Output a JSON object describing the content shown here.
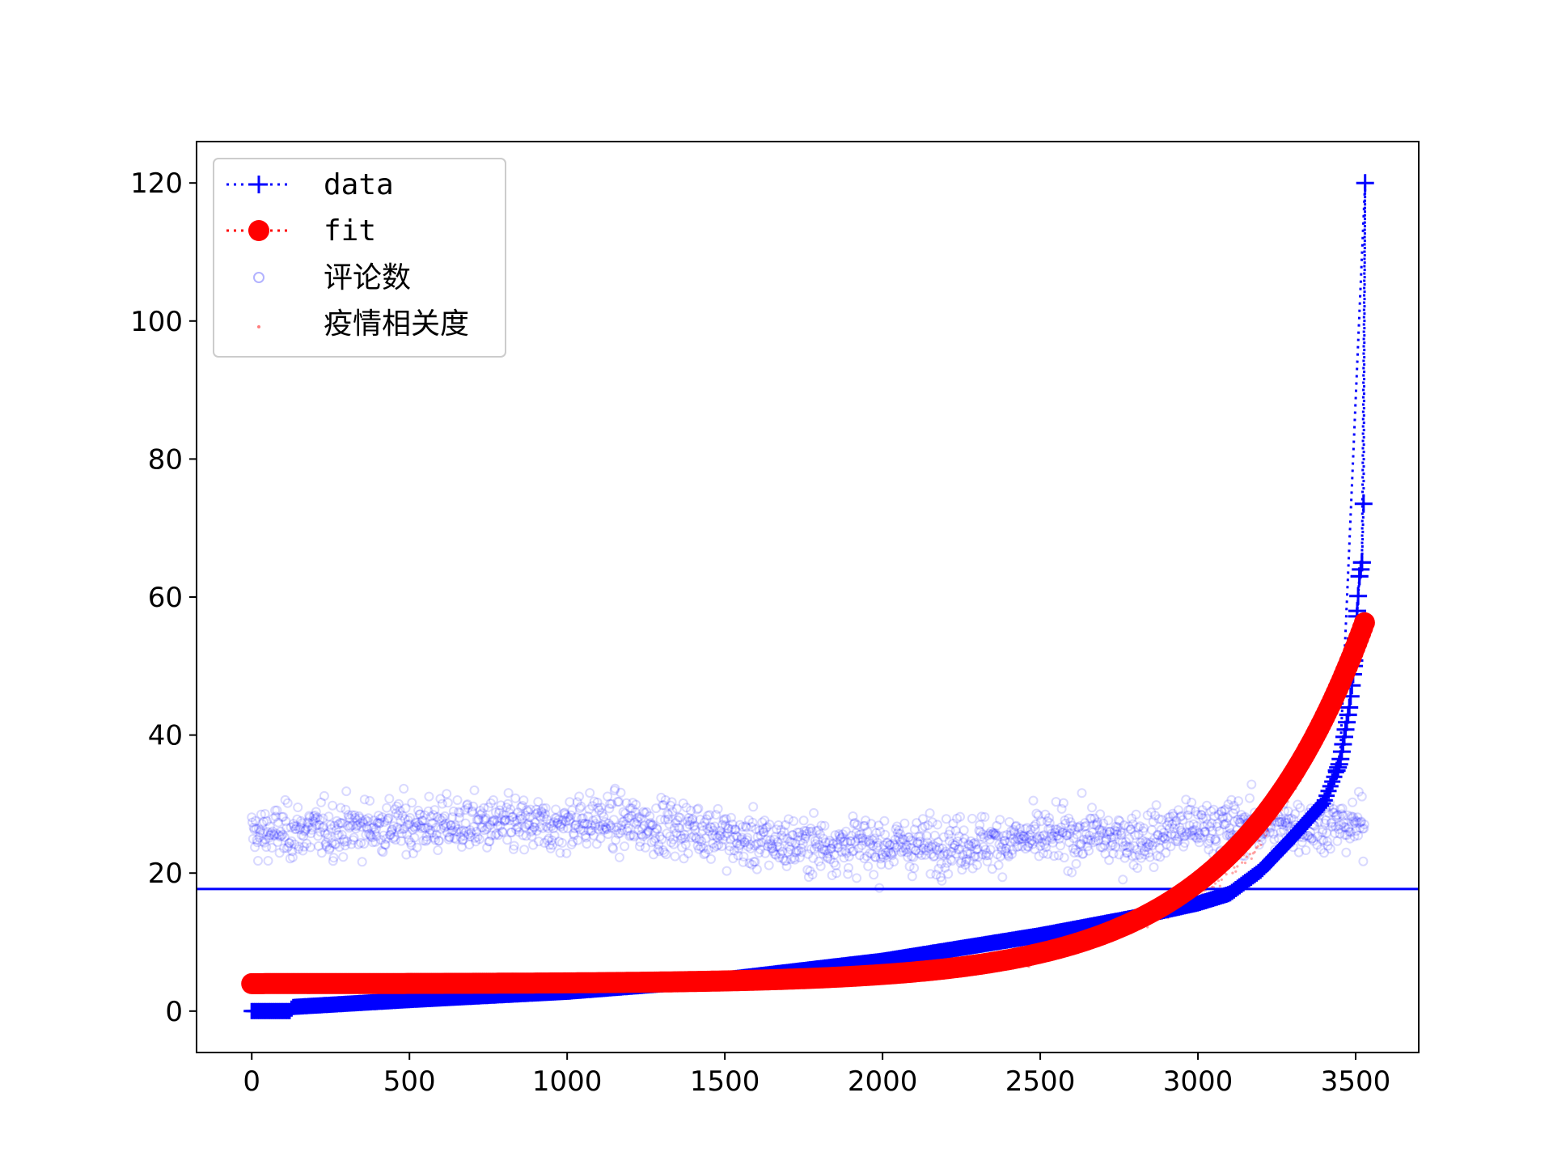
{
  "chart_data": {
    "type": "scatter",
    "title": "",
    "xlabel": "",
    "ylabel": "",
    "xlim": [
      -175,
      3700
    ],
    "ylim": [
      -6,
      126
    ],
    "x_ticks": [
      0,
      500,
      1000,
      1500,
      2000,
      2500,
      3000,
      3500
    ],
    "y_ticks": [
      0,
      20,
      40,
      60,
      80,
      100,
      120
    ],
    "x_tick_labels": [
      "0",
      "500",
      "1000",
      "1500",
      "2000",
      "2500",
      "3000",
      "3500"
    ],
    "y_tick_labels": [
      "0",
      "20",
      "40",
      "60",
      "80",
      "100",
      "120"
    ],
    "grid": false,
    "legend_position": "top-left",
    "n_points": 3530,
    "hline": {
      "y": 17.7,
      "color": "#0000ff"
    },
    "series": [
      {
        "name": "data",
        "kind": "line-markers",
        "marker": "plus",
        "linestyle": "dotted",
        "color": "#0000ff",
        "description_points": [
          [
            0,
            0.0
          ],
          [
            120,
            0.0
          ],
          [
            130,
            0.6
          ],
          [
            500,
            1.6
          ],
          [
            1000,
            2.8
          ],
          [
            1500,
            4.6
          ],
          [
            2000,
            7.3
          ],
          [
            2500,
            11.0
          ],
          [
            2800,
            13.6
          ],
          [
            3000,
            15.6
          ],
          [
            3100,
            17.0
          ],
          [
            3200,
            20.4
          ],
          [
            3300,
            25.2
          ],
          [
            3400,
            30.3
          ],
          [
            3450,
            36.0
          ],
          [
            3480,
            44.0
          ],
          [
            3495,
            50.0
          ],
          [
            3505,
            58.0
          ],
          [
            3512,
            63.0
          ],
          [
            3520,
            65.0
          ],
          [
            3525,
            73.5
          ],
          [
            3530,
            120.0
          ]
        ]
      },
      {
        "name": "fit",
        "kind": "line-markers",
        "marker": "circle",
        "linestyle": "dotted",
        "color": "#ff0000",
        "model": {
          "form": "a*exp(b*x)+c",
          "a": 0.011,
          "b": 0.0024,
          "c": 3.97
        },
        "description_points": [
          [
            0,
            4.0
          ],
          [
            500,
            4.0
          ],
          [
            1000,
            4.1
          ],
          [
            1500,
            4.4
          ],
          [
            2000,
            5.3
          ],
          [
            2500,
            8.1
          ],
          [
            3000,
            16.3
          ],
          [
            3200,
            24.5
          ],
          [
            3400,
            40.6
          ],
          [
            3530,
            56.2
          ]
        ]
      },
      {
        "name": "评论数",
        "kind": "scatter",
        "marker": "circle-hollow",
        "color": "#0000ff",
        "alpha": 0.15,
        "typical_range": [
          17,
          40
        ],
        "center": 25.5
      },
      {
        "name": "疫情相关度",
        "kind": "scatter",
        "marker": "point",
        "color": "#ff0000",
        "alpha": 0.35
      }
    ]
  }
}
